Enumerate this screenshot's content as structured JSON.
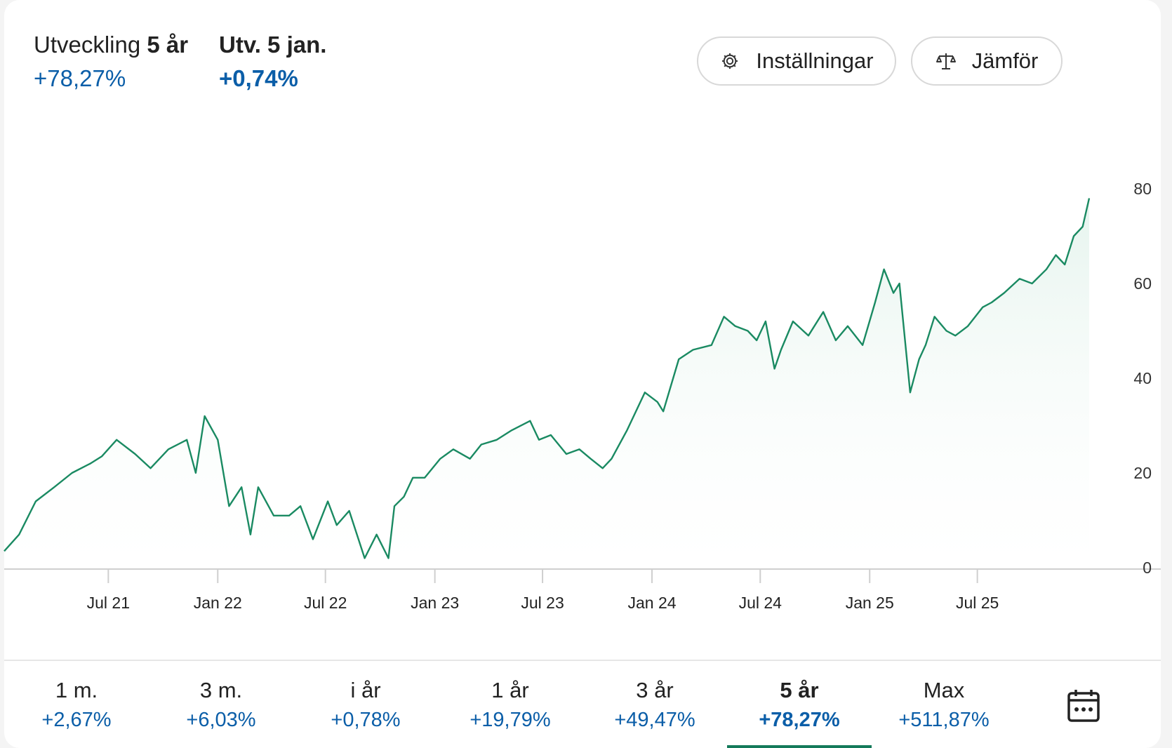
{
  "header": {
    "perf_label": "Utveckling",
    "perf_period": "5 år",
    "perf_value": "+78,27%",
    "day_label": "Utv. 5 jan.",
    "day_value": "+0,74%"
  },
  "buttons": {
    "settings_label": "Inställningar",
    "settings_icon": "gear-icon",
    "compare_label": "Jämför",
    "compare_icon": "scale-icon"
  },
  "colors": {
    "line": "#1a8a62",
    "fill": "#e6f4ee",
    "positive": "#0b5ea8",
    "active_tab": "#137a5a"
  },
  "chart_data": {
    "type": "area",
    "xlabel": "",
    "ylabel": "",
    "ylim": [
      0,
      85
    ],
    "yticks": [
      0,
      20,
      40,
      60,
      80
    ],
    "ytick_labels": [
      "0",
      "20",
      "40",
      "60",
      "80"
    ],
    "x_range": [
      "2021-01-07",
      "2026-01-05"
    ],
    "xticks": [
      "2021-07-01",
      "2022-01-01",
      "2022-07-01",
      "2023-01-01",
      "2023-07-01",
      "2024-01-01",
      "2024-07-01",
      "2025-01-01",
      "2025-07-01"
    ],
    "xtick_labels": [
      "Jul 21",
      "Jan 22",
      "Jul 22",
      "Jan 23",
      "Jul 23",
      "Jan 24",
      "Jul 24",
      "Jan 25",
      "Jul 25"
    ],
    "grid": false,
    "y_axis_side": "right",
    "series": [
      {
        "x": [
          "2021-01-07",
          "2021-02-01",
          "2021-03-01",
          "2021-04-01",
          "2021-05-01",
          "2021-06-01",
          "2021-06-20",
          "2021-07-15",
          "2021-08-15",
          "2021-09-10",
          "2021-10-10",
          "2021-11-10",
          "2021-11-25",
          "2021-12-10",
          "2022-01-01",
          "2022-01-20",
          "2022-02-10",
          "2022-02-25",
          "2022-03-10",
          "2022-04-05",
          "2022-05-01",
          "2022-05-20",
          "2022-06-10",
          "2022-07-05",
          "2022-07-20",
          "2022-08-10",
          "2022-09-05",
          "2022-09-25",
          "2022-10-15",
          "2022-10-25",
          "2022-11-10",
          "2022-11-25",
          "2022-12-15",
          "2023-01-10",
          "2023-02-01",
          "2023-03-01",
          "2023-03-20",
          "2023-04-15",
          "2023-05-10",
          "2023-06-10",
          "2023-06-25",
          "2023-07-15",
          "2023-08-10",
          "2023-09-01",
          "2023-09-20",
          "2023-10-10",
          "2023-10-25",
          "2023-11-20",
          "2023-12-20",
          "2024-01-10",
          "2024-01-20",
          "2024-02-15",
          "2024-03-10",
          "2024-04-10",
          "2024-05-01",
          "2024-05-20",
          "2024-06-10",
          "2024-06-25",
          "2024-07-10",
          "2024-07-25",
          "2024-08-05",
          "2024-08-25",
          "2024-09-20",
          "2024-10-15",
          "2024-11-05",
          "2024-11-25",
          "2024-12-20",
          "2025-01-10",
          "2025-01-25",
          "2025-02-10",
          "2025-02-20",
          "2025-03-10",
          "2025-03-25",
          "2025-04-05",
          "2025-04-20",
          "2025-05-10",
          "2025-05-25",
          "2025-06-15",
          "2025-07-10",
          "2025-07-25",
          "2025-08-15",
          "2025-09-10",
          "2025-10-01",
          "2025-10-25",
          "2025-11-10",
          "2025-11-25",
          "2025-12-10",
          "2025-12-25",
          "2026-01-05"
        ],
        "y": [
          3.5,
          7,
          14,
          17,
          20,
          22,
          23.5,
          27,
          24,
          21,
          25,
          27,
          20,
          32,
          27,
          13,
          17,
          7,
          17,
          11,
          11,
          13,
          6,
          14,
          9,
          12,
          2,
          7,
          2,
          13,
          15,
          19,
          19,
          23,
          25,
          23,
          26,
          27,
          29,
          31,
          27,
          28,
          24,
          25,
          23,
          21,
          23,
          29,
          37,
          35,
          33,
          44,
          46,
          47,
          53,
          51,
          50,
          48,
          52,
          42,
          46,
          52,
          49,
          54,
          48,
          51,
          47,
          56,
          63,
          58,
          60,
          37,
          44,
          47,
          53,
          50,
          49,
          51,
          55,
          56,
          58,
          61,
          60,
          63,
          66,
          64,
          70,
          72,
          78
        ]
      }
    ]
  },
  "periods": [
    {
      "label": "1 m.",
      "value": "+2,67%"
    },
    {
      "label": "3 m.",
      "value": "+6,03%"
    },
    {
      "label": "i år",
      "value": "+0,78%"
    },
    {
      "label": "1 år",
      "value": "+19,79%"
    },
    {
      "label": "3 år",
      "value": "+49,47%"
    },
    {
      "label": "5 år",
      "value": "+78,27%",
      "active": true
    },
    {
      "label": "Max",
      "value": "+511,87%"
    }
  ],
  "calendar_icon": "calendar-icon"
}
